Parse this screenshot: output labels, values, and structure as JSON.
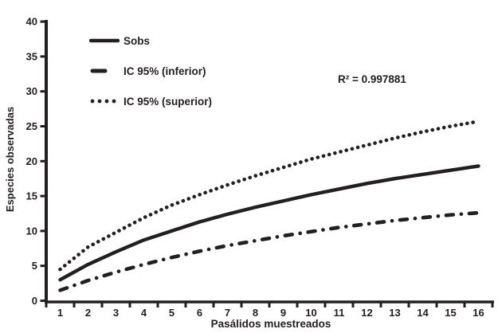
{
  "figure": {
    "background": "#ffffff",
    "ink_color": "#231f20",
    "annotation": "R² = 0.997881"
  },
  "chart_data": {
    "type": "line",
    "title": "",
    "xlabel": "Pasálidos muestreados",
    "ylabel": "Especies observadas",
    "x": [
      1,
      2,
      3,
      4,
      5,
      6,
      7,
      8,
      9,
      10,
      11,
      12,
      13,
      14,
      15,
      16
    ],
    "x_tick_labels": [
      "1",
      "2",
      "3",
      "4",
      "5",
      "6",
      "7",
      "8",
      "9",
      "10",
      "11",
      "12",
      "13",
      "14",
      "15",
      "16"
    ],
    "y_ticks": [
      0,
      5,
      10,
      15,
      20,
      25,
      30,
      35,
      40
    ],
    "ylim": [
      0,
      40
    ],
    "grid": false,
    "legend_position": "top-left",
    "annotation": "R² = 0.997881",
    "series": [
      {
        "name": "Sobs",
        "style": "solid",
        "values": [
          3.0,
          5.2,
          7.0,
          8.7,
          10.0,
          11.3,
          12.4,
          13.4,
          14.3,
          15.2,
          16.0,
          16.8,
          17.5,
          18.1,
          18.7,
          19.3
        ]
      },
      {
        "name": "IC 95% (inferior)",
        "style": "dash-dot",
        "values": [
          1.5,
          2.9,
          4.1,
          5.2,
          6.2,
          7.1,
          7.9,
          8.6,
          9.3,
          9.9,
          10.5,
          11.0,
          11.5,
          11.9,
          12.3,
          12.6
        ]
      },
      {
        "name": "IC 95% (superior)",
        "style": "dotted",
        "values": [
          4.5,
          7.7,
          9.8,
          11.9,
          13.7,
          15.2,
          16.6,
          17.9,
          19.1,
          20.3,
          21.3,
          22.3,
          23.3,
          24.2,
          25.0,
          25.7
        ]
      }
    ]
  }
}
